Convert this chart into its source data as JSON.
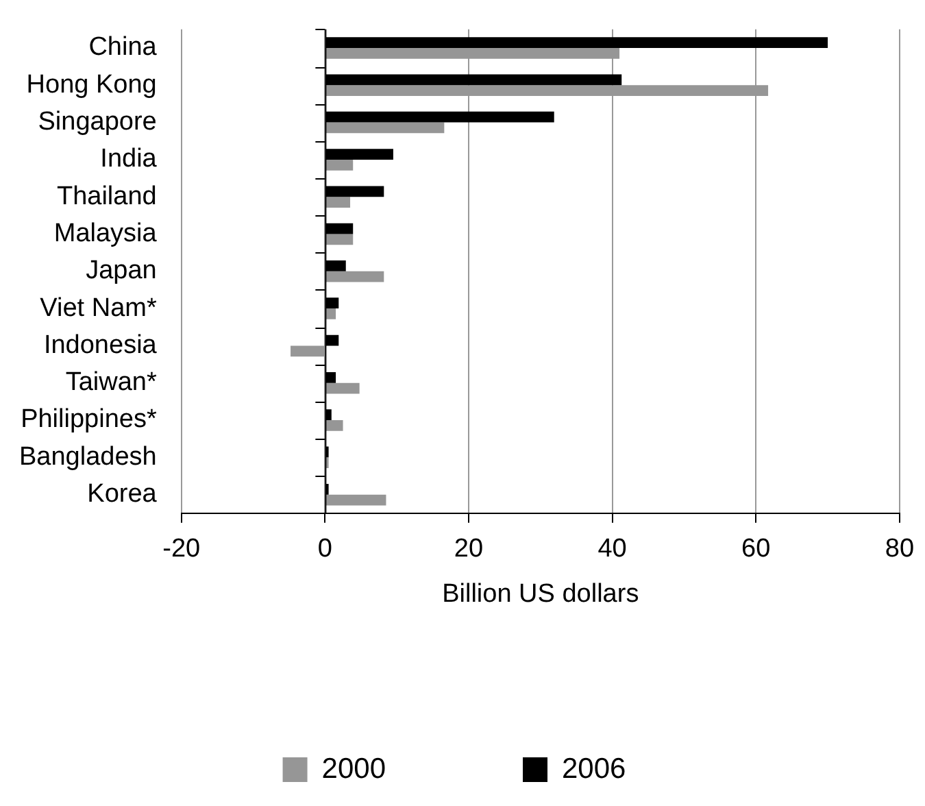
{
  "chart_data": {
    "type": "bar",
    "orientation": "horizontal",
    "xlabel": "Billion US dollars",
    "categories": [
      "China",
      "Hong Kong",
      "Singapore",
      "India",
      "Thailand",
      "Malaysia",
      "Japan",
      "Viet Nam*",
      "Indonesia",
      "Taiwan*",
      "Philippines*",
      "Bangladesh",
      "Korea"
    ],
    "series": [
      {
        "name": "2000",
        "color": "#969696",
        "values": [
          41,
          61.7,
          16.6,
          3.9,
          3.5,
          3.9,
          8.2,
          1.5,
          -4.8,
          4.8,
          2.5,
          0.5,
          8.5
        ]
      },
      {
        "name": "2006",
        "color": "#000000",
        "values": [
          70,
          41.3,
          31.9,
          9.5,
          8.2,
          3.9,
          2.9,
          1.9,
          1.9,
          1.5,
          0.9,
          0.5,
          0.5
        ]
      }
    ],
    "xlim": [
      -20,
      80
    ],
    "xticks": [
      -20,
      0,
      20,
      40,
      60,
      80
    ],
    "grid": "x",
    "legend": "bottom"
  }
}
